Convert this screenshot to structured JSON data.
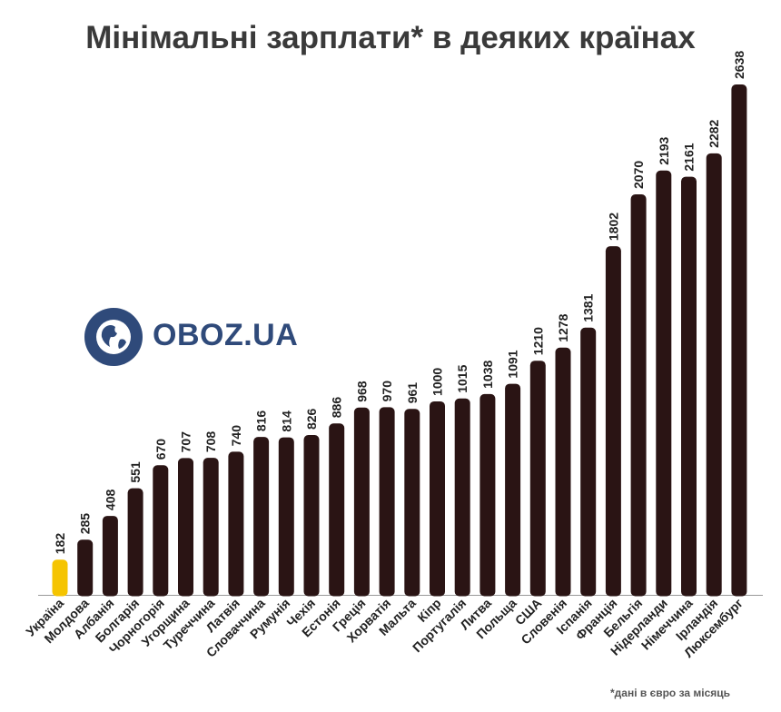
{
  "title": "Мінімальні зарплати* в деяких країнах",
  "logo": {
    "text": "OBOZ.UA",
    "icon": "globe-icon"
  },
  "footnote": "*дані в євро за місяць",
  "colors": {
    "bar": "#2a1414",
    "highlight": "#f5c400",
    "text": "#222222",
    "axis": "#999999",
    "logo": "#2f4a7a"
  },
  "chart_data": {
    "type": "bar",
    "title": "Мінімальні зарплати* в деяких країнах",
    "unit_note": "*дані в євро за місяць",
    "xlabel": "",
    "ylabel": "",
    "ylim": [
      0,
      2638
    ],
    "grid": false,
    "highlight_category": "Україна",
    "categories": [
      "Україна",
      "Молдова",
      "Албанія",
      "Болгарія",
      "Чорногорія",
      "Угорщина",
      "Туреччина",
      "Латвія",
      "Словаччина",
      "Румунія",
      "Чехія",
      "Естонія",
      "Греція",
      "Хорватія",
      "Мальта",
      "Кіпр",
      "Португалія",
      "Литва",
      "Польща",
      "США",
      "Словенія",
      "Іспанія",
      "Франція",
      "Бельгія",
      "Нідерланди",
      "Німеччина",
      "Ірландія",
      "Люксембург"
    ],
    "values": [
      182,
      285,
      408,
      551,
      670,
      707,
      708,
      740,
      816,
      814,
      826,
      886,
      968,
      970,
      961,
      1000,
      1015,
      1038,
      1091,
      1210,
      1278,
      1381,
      1802,
      2070,
      2193,
      2161,
      2282,
      2638
    ]
  }
}
